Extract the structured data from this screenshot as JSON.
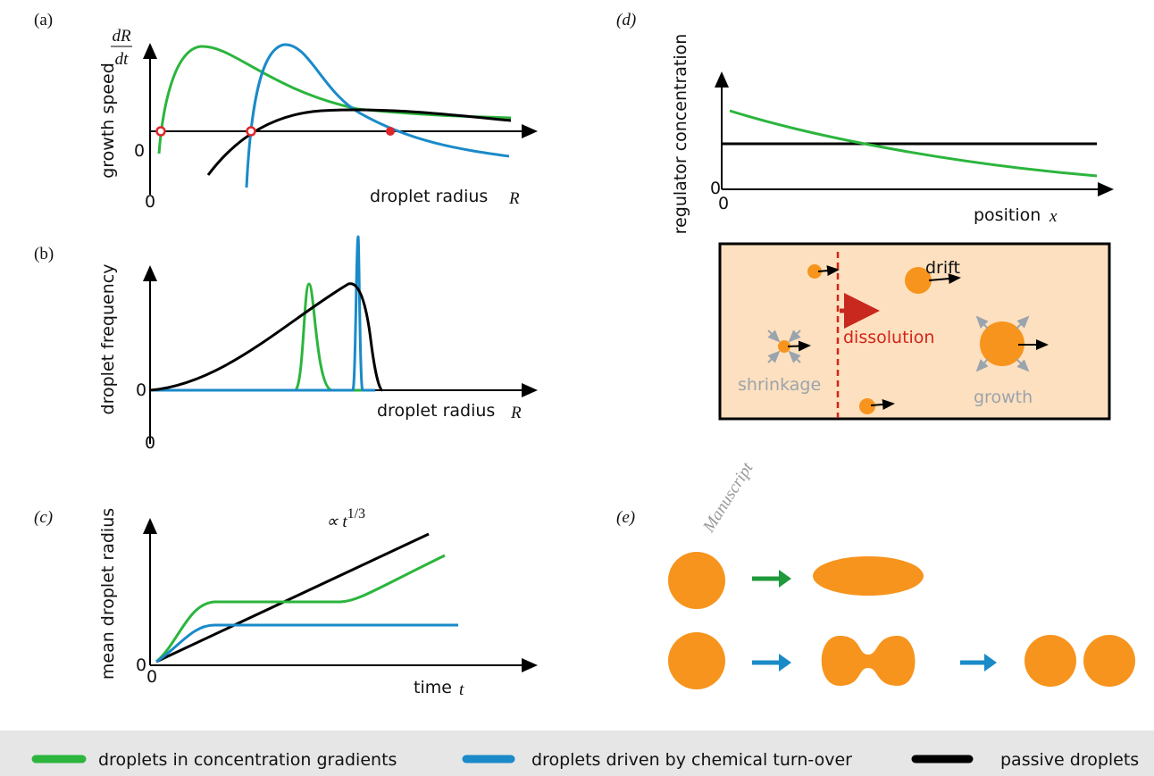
{
  "panels": {
    "a": {
      "label": "(a)",
      "y_label": "growth speed",
      "y_symbol_numerator": "dR",
      "y_symbol_denominator": "dt",
      "y_zero": "0",
      "x_zero": "0",
      "x_label": "droplet radius",
      "x_symbol": "R"
    },
    "b": {
      "label": "(b)",
      "y_label": "droplet frequency",
      "y_zero": "0",
      "x_zero": "0",
      "x_label": "droplet radius",
      "x_symbol": "R"
    },
    "c": {
      "label": "(c)",
      "y_label": "mean droplet radius",
      "y_zero": "0",
      "x_zero": "0",
      "x_label": "time",
      "x_symbol": "t",
      "scaling_base": "∝ t",
      "scaling_exponent": "1/3"
    },
    "d": {
      "label": "(d)",
      "y_label": "regulator concentration",
      "y_zero": "0",
      "x_zero": "0",
      "x_label": "position",
      "x_symbol": "x",
      "drift": "drift",
      "dissolution": "dissolution",
      "shrinkage": "shrinkage",
      "growth": "growth"
    },
    "e": {
      "label": "(e)"
    }
  },
  "legend": [
    {
      "name": "droplets in concentration gradients",
      "color": "#2bb53d"
    },
    {
      "name": "droplets driven by chemical turn-over",
      "color": "#1a8ac8"
    },
    {
      "name": "passive droplets",
      "color": "#000000"
    }
  ],
  "watermark": "Manuscript"
}
